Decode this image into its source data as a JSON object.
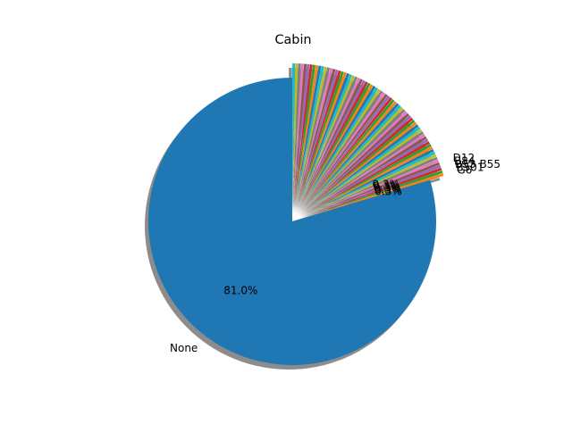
{
  "chart_data": {
    "type": "pie",
    "title": "Cabin",
    "start_angle_deg": 90,
    "direction": "counterclockwise",
    "shadow": true,
    "slices": [
      {
        "label": "None",
        "pct_label": "81.0%",
        "value": 81.0,
        "color": "#1f77b4",
        "explode": false
      },
      {
        "label": "G6",
        "pct_label": "0.3%",
        "value": 0.3,
        "color": "#ff7f0e",
        "explode": true
      },
      {
        "label": "B501",
        "pct_label": "0.3%",
        "value": 0.3,
        "color": "#2ca02c",
        "explode": true
      },
      {
        "label": "B53 B55",
        "pct_label": "0.3%",
        "value": 0.3,
        "color": "#d62728",
        "explode": true
      },
      {
        "label": "B84",
        "pct_label": "0.3%",
        "value": 0.3,
        "color": "#9467bd",
        "explode": true
      },
      {
        "label": "D12",
        "pct_label": "0.3%",
        "value": 0.3,
        "color": "#8c564b",
        "explode": true
      },
      {
        "label": "",
        "value": 0.3,
        "color": "#e377c2",
        "explode": true
      },
      {
        "label": "",
        "value": 0.3,
        "color": "#7f7f7f",
        "explode": true
      },
      {
        "label": "",
        "value": 0.3,
        "color": "#bcbd22",
        "explode": true
      },
      {
        "label": "",
        "value": 0.3,
        "color": "#17becf",
        "explode": true
      },
      {
        "label": "",
        "value": 0.3,
        "color": "#1f77b4",
        "explode": true
      },
      {
        "label": "",
        "value": 0.3,
        "color": "#ff7f0e",
        "explode": true
      },
      {
        "label": "",
        "value": 0.3,
        "color": "#2ca02c",
        "explode": true
      },
      {
        "label": "",
        "value": 0.3,
        "color": "#d62728",
        "explode": true
      },
      {
        "label": "",
        "value": 0.3,
        "color": "#9467bd",
        "explode": true
      },
      {
        "label": "",
        "value": 0.3,
        "color": "#8c564b",
        "explode": true
      },
      {
        "label": "",
        "value": 0.3,
        "color": "#e377c2",
        "explode": true
      },
      {
        "label": "",
        "value": 0.3,
        "color": "#7f7f7f",
        "explode": true
      },
      {
        "label": "",
        "value": 0.3,
        "color": "#bcbd22",
        "explode": true
      },
      {
        "label": "",
        "value": 0.3,
        "color": "#17becf",
        "explode": true
      },
      {
        "label": "",
        "value": 0.3,
        "color": "#1f77b4",
        "explode": true
      },
      {
        "label": "",
        "value": 0.3,
        "color": "#ff7f0e",
        "explode": true
      },
      {
        "label": "",
        "value": 0.3,
        "color": "#2ca02c",
        "explode": true
      },
      {
        "label": "",
        "value": 0.3,
        "color": "#d62728",
        "explode": true
      },
      {
        "label": "",
        "value": 0.3,
        "color": "#9467bd",
        "explode": true
      },
      {
        "label": "",
        "value": 0.3,
        "color": "#8c564b",
        "explode": true
      },
      {
        "label": "",
        "value": 0.3,
        "color": "#e377c2",
        "explode": true
      },
      {
        "label": "",
        "value": 0.3,
        "color": "#7f7f7f",
        "explode": true
      },
      {
        "label": "",
        "value": 0.3,
        "color": "#bcbd22",
        "explode": true
      },
      {
        "label": "",
        "value": 0.3,
        "color": "#17becf",
        "explode": true
      },
      {
        "label": "",
        "value": 0.3,
        "color": "#1f77b4",
        "explode": true
      },
      {
        "label": "",
        "value": 0.3,
        "color": "#ff7f0e",
        "explode": true
      },
      {
        "label": "",
        "value": 0.3,
        "color": "#2ca02c",
        "explode": true
      },
      {
        "label": "",
        "value": 0.3,
        "color": "#d62728",
        "explode": true
      },
      {
        "label": "",
        "value": 0.3,
        "color": "#9467bd",
        "explode": true
      },
      {
        "label": "",
        "value": 0.3,
        "color": "#8c564b",
        "explode": true
      },
      {
        "label": "",
        "value": 0.3,
        "color": "#e377c2",
        "explode": true
      },
      {
        "label": "",
        "value": 0.3,
        "color": "#7f7f7f",
        "explode": true
      },
      {
        "label": "",
        "value": 0.3,
        "color": "#bcbd22",
        "explode": true
      },
      {
        "label": "",
        "value": 0.3,
        "color": "#17becf",
        "explode": true
      },
      {
        "label": "",
        "value": 0.3,
        "color": "#1f77b4",
        "explode": true
      },
      {
        "label": "",
        "value": 0.3,
        "color": "#ff7f0e",
        "explode": true
      },
      {
        "label": "",
        "value": 0.3,
        "color": "#2ca02c",
        "explode": true
      },
      {
        "label": "",
        "value": 0.3,
        "color": "#d62728",
        "explode": true
      },
      {
        "label": "",
        "value": 0.3,
        "color": "#9467bd",
        "explode": true
      },
      {
        "label": "",
        "value": 0.3,
        "color": "#8c564b",
        "explode": true
      },
      {
        "label": "",
        "value": 0.3,
        "color": "#e377c2",
        "explode": true
      },
      {
        "label": "",
        "value": 0.3,
        "color": "#7f7f7f",
        "explode": true
      },
      {
        "label": "",
        "value": 0.3,
        "color": "#bcbd22",
        "explode": true
      },
      {
        "label": "",
        "value": 0.3,
        "color": "#17becf",
        "explode": true
      },
      {
        "label": "",
        "value": 0.3,
        "color": "#1f77b4",
        "explode": true
      },
      {
        "label": "",
        "value": 0.3,
        "color": "#ff7f0e",
        "explode": true
      },
      {
        "label": "",
        "value": 0.3,
        "color": "#2ca02c",
        "explode": true
      },
      {
        "label": "",
        "value": 0.3,
        "color": "#d62728",
        "explode": true
      },
      {
        "label": "",
        "value": 0.3,
        "color": "#9467bd",
        "explode": true
      },
      {
        "label": "",
        "value": 0.3,
        "color": "#8c564b",
        "explode": true
      },
      {
        "label": "",
        "value": 0.3,
        "color": "#e377c2",
        "explode": true
      },
      {
        "label": "",
        "value": 0.3,
        "color": "#7f7f7f",
        "explode": true
      },
      {
        "label": "",
        "value": 0.3,
        "color": "#bcbd22",
        "explode": true
      },
      {
        "label": "",
        "value": 0.3,
        "color": "#17becf",
        "explode": true
      },
      {
        "label": "",
        "value": 0.3,
        "color": "#1f77b4",
        "explode": true
      },
      {
        "label": "",
        "value": 0.3,
        "color": "#ff7f0e",
        "explode": true
      },
      {
        "label": "",
        "value": 0.3,
        "color": "#2ca02c",
        "explode": true
      },
      {
        "label": "",
        "value": 0.3,
        "color": "#d62728",
        "explode": true
      },
      {
        "label": "",
        "value": 0.3,
        "color": "#9467bd",
        "explode": true
      },
      {
        "label": "",
        "value": 0.3,
        "color": "#8c564b",
        "explode": true
      },
      {
        "label": "",
        "value": 0.3,
        "color": "#e377c2",
        "explode": true
      },
      {
        "label": "",
        "value": 0.3,
        "color": "#7f7f7f",
        "explode": true
      },
      {
        "label": "",
        "value": 0.3,
        "color": "#bcbd22",
        "explode": true
      },
      {
        "label": "",
        "value": 0.3,
        "color": "#17becf",
        "explode": true
      }
    ]
  }
}
